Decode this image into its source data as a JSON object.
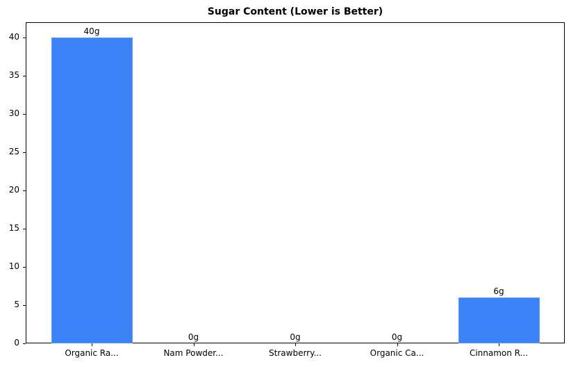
{
  "chart_data": {
    "type": "bar",
    "title": "Sugar Content (Lower is Better)",
    "xlabel": "",
    "ylabel": "",
    "categories": [
      "Organic Ra...",
      "Nam Powder...",
      "Strawberry...",
      "Organic Ca...",
      "Cinnamon R..."
    ],
    "values": [
      40,
      0,
      0,
      0,
      6
    ],
    "value_labels": [
      "40g",
      "0g",
      "0g",
      "0g",
      "6g"
    ],
    "unit": "g",
    "ylim": [
      0,
      42
    ],
    "yticks": [
      0,
      5,
      10,
      15,
      20,
      25,
      30,
      35,
      40
    ],
    "grid": false,
    "legend": null,
    "bar_color": "#3b82f6"
  }
}
